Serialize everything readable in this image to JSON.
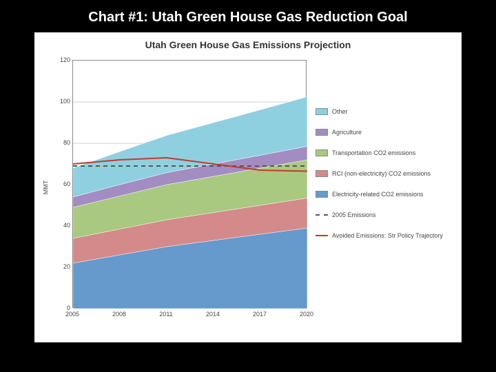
{
  "slide": {
    "title": "Chart #1:  Utah Green House Gas Reduction Goal",
    "background_color": "#000000",
    "title_color": "#ffffff",
    "title_fontsize": 20
  },
  "chart": {
    "type": "stacked-area",
    "title": "Utah Green House Gas Emissions Projection",
    "title_fontsize": 14,
    "panel_background": "#ffffff",
    "plot_background": "#ffffff",
    "border_color": "#888888",
    "ylabel": "MMT",
    "label_fontsize": 9,
    "xlim": [
      2005,
      2020
    ],
    "ylim": [
      0,
      120
    ],
    "ytick_step": 20,
    "yticks": [
      0,
      20,
      40,
      60,
      80,
      100,
      120
    ],
    "xticks": [
      2005,
      2008,
      2011,
      2014,
      2017,
      2020
    ],
    "grid_color": "#d0d0d0",
    "grid_on": true,
    "x_years": [
      2005,
      2008,
      2011,
      2014,
      2017,
      2020
    ],
    "series": [
      {
        "name": "Electricity-related CO2 emissions",
        "color": "#6699cc",
        "values": [
          22,
          26,
          30,
          33,
          36,
          39
        ]
      },
      {
        "name": "RCI (non-electricity) CO2 emissions",
        "color": "#d48a8a",
        "values": [
          12,
          12.5,
          13,
          13.5,
          14,
          14.5
        ]
      },
      {
        "name": "Transportation CO2 emissions",
        "color": "#a8c97f",
        "values": [
          15,
          16,
          17,
          17.5,
          18,
          18.5
        ]
      },
      {
        "name": "Agriculture",
        "color": "#a38cc2",
        "values": [
          5,
          5.5,
          5.8,
          6,
          6.2,
          6.5
        ]
      },
      {
        "name": "Other",
        "color": "#8fd0e0",
        "values": [
          14,
          16,
          18,
          20,
          22,
          24
        ]
      }
    ],
    "reference_lines": [
      {
        "name": "2005 Emissions",
        "color": "#555555",
        "style": "dashed",
        "width": 2,
        "dash": "6,5",
        "values": [
          69,
          69,
          69,
          69,
          69,
          69
        ]
      },
      {
        "name": "Avoided Emissions: Str Policy Trajectory",
        "color": "#c0392b",
        "style": "solid",
        "width": 2,
        "values": [
          70,
          72,
          73,
          70,
          67,
          66.5
        ]
      }
    ],
    "legend": {
      "position": "right",
      "order": [
        "Other",
        "Agriculture",
        "Transportation CO2 emissions",
        "RCI (non-electricity) CO2 emissions",
        "Electricity-related CO2 emissions",
        "2005 Emissions",
        "Avoided Emissions: Str Policy Trajectory"
      ]
    }
  }
}
